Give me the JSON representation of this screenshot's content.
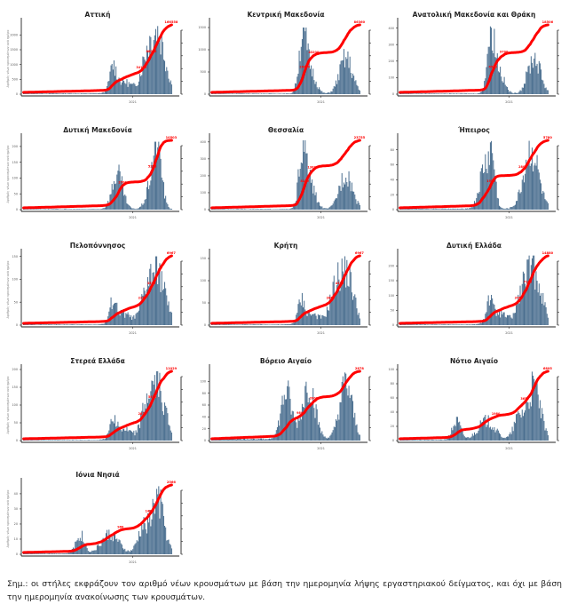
{
  "chart_data": [
    {
      "type": "bar",
      "title": "Αττική",
      "ylabel": "Αριθμός νέων κρουσμάτων ανά ημέρα",
      "xtick": "2021",
      "ylim": [
        0,
        2400
      ],
      "yticks": [
        0,
        500,
        1000,
        1500,
        2000
      ],
      "peak": 2300,
      "end_label": "166558",
      "mid_labels": [
        "34150",
        "88000"
      ],
      "shape": "attica",
      "total": 166558
    },
    {
      "type": "bar",
      "title": "Κεντρική Μακεδονία",
      "ylabel": "",
      "xtick": "2021",
      "ylim": [
        0,
        1600
      ],
      "yticks": [
        0,
        500,
        1000,
        1500
      ],
      "peak": 1500,
      "end_label": "86360",
      "mid_labels": [
        "26400",
        "43200"
      ],
      "shape": "macedonia",
      "total": 86360
    },
    {
      "type": "bar",
      "title": "Ανατολική Μακεδονία και Θράκη",
      "ylabel": "",
      "xtick": "2021",
      "ylim": [
        0,
        430
      ],
      "yticks": [
        0,
        100,
        200,
        300,
        400
      ],
      "peak": 410,
      "end_label": "18506",
      "mid_labels": [
        "6500",
        "9700"
      ],
      "shape": "macedonia",
      "total": 18506
    },
    {
      "type": "bar",
      "title": "Δυτική Μακεδονία",
      "ylabel": "Αριθμός νέων κρουσμάτων ανά ημέρα",
      "xtick": "2021",
      "ylim": [
        0,
        225
      ],
      "yticks": [
        0,
        50,
        100,
        150,
        200
      ],
      "peak": 215,
      "end_label": "10503",
      "mid_labels": [
        "2700",
        "5255"
      ],
      "shape": "westmac",
      "total": 10503
    },
    {
      "type": "bar",
      "title": "Θεσσαλία",
      "ylabel": "",
      "xtick": "2021",
      "ylim": [
        0,
        420
      ],
      "yticks": [
        0,
        100,
        200,
        300,
        400
      ],
      "peak": 410,
      "end_label": "23755",
      "mid_labels": [
        "8100",
        "13025"
      ],
      "shape": "macedonia",
      "total": 23755
    },
    {
      "type": "bar",
      "title": "Ήπειρος",
      "ylabel": "",
      "xtick": "2021",
      "ylim": [
        0,
        95
      ],
      "yticks": [
        0,
        20,
        40,
        60,
        80
      ],
      "peak": 92,
      "end_label": "5780",
      "mid_labels": [
        "1950",
        "2800"
      ],
      "shape": "epirus",
      "total": 5780
    },
    {
      "type": "bar",
      "title": "Πελοπόννησος",
      "ylabel": "Αριθμός νέων κρουσμάτων ανά ημέρα",
      "xtick": "2021",
      "ylim": [
        0,
        155
      ],
      "yticks": [
        0,
        50,
        100,
        150
      ],
      "peak": 150,
      "end_label": "6967",
      "mid_labels": [
        "2290",
        "3550"
      ],
      "shape": "attica",
      "total": 6967
    },
    {
      "type": "bar",
      "title": "Κρήτη",
      "ylabel": "",
      "xtick": "2021",
      "ylim": [
        0,
        160
      ],
      "yticks": [
        0,
        50,
        100,
        150
      ],
      "peak": 155,
      "end_label": "6967",
      "mid_labels": [
        "2865",
        "4350"
      ],
      "shape": "attica",
      "total": 6967
    },
    {
      "type": "bar",
      "title": "Δυτική Ελλάδα",
      "ylabel": "",
      "xtick": "2021",
      "ylim": [
        0,
        240
      ],
      "yticks": [
        0,
        50,
        100,
        150,
        200
      ],
      "peak": 235,
      "end_label": "14880",
      "mid_labels": [
        "3750",
        "7125"
      ],
      "shape": "attica",
      "total": 14880
    },
    {
      "type": "bar",
      "title": "Στερεά Ελλάδα",
      "ylabel": "Αριθμός νέων κρουσμάτων ανά ημέρα",
      "xtick": "2021",
      "ylim": [
        0,
        200
      ],
      "yticks": [
        0,
        50,
        100,
        150,
        200
      ],
      "peak": 195,
      "end_label": "11029",
      "mid_labels": [
        "2870",
        "5620"
      ],
      "shape": "attica",
      "total": 11029
    },
    {
      "type": "bar",
      "title": "Βόρειο Αιγαίο",
      "ylabel": "",
      "xtick": "2021",
      "ylim": [
        0,
        120
      ],
      "yticks": [
        0,
        20,
        40,
        60,
        80,
        100
      ],
      "peak": 115,
      "end_label": "2878",
      "mid_labels": [
        "980",
        "2000"
      ],
      "shape": "northaegean",
      "total": 2878
    },
    {
      "type": "bar",
      "title": "Νότιο Αιγαίο",
      "ylabel": "",
      "xtick": "2021",
      "ylim": [
        0,
        100
      ],
      "yticks": [
        0,
        20,
        40,
        60,
        80,
        100
      ],
      "peak": 97,
      "end_label": "6895",
      "mid_labels": [
        "1980",
        "3650"
      ],
      "shape": "southaegean",
      "total": 6895
    },
    {
      "type": "bar",
      "title": "Ιόνια Νησιά",
      "ylabel": "Αριθμός νέων κρουσμάτων ανά ημέρα",
      "xtick": "2021",
      "ylim": [
        0,
        47
      ],
      "yticks": [
        0,
        10,
        20,
        30,
        40
      ],
      "peak": 45,
      "end_label": "2566",
      "mid_labels": [
        "960",
        "1480"
      ],
      "shape": "southaegean",
      "total": 2566
    }
  ],
  "colors": {
    "bar": "#4a6e8f",
    "line": "#ff0000",
    "label": "#ff0000",
    "axis": "#222222"
  },
  "note": "Σημ.: οι στήλες εκφράζουν τον αριθμό νέων κρουσμάτων με βάση την ημερομηνία λήψης εργαστηριακού δείγματος, και όχι με βάση την ημερομηνία ανακοίνωσης των κρουσμάτων."
}
